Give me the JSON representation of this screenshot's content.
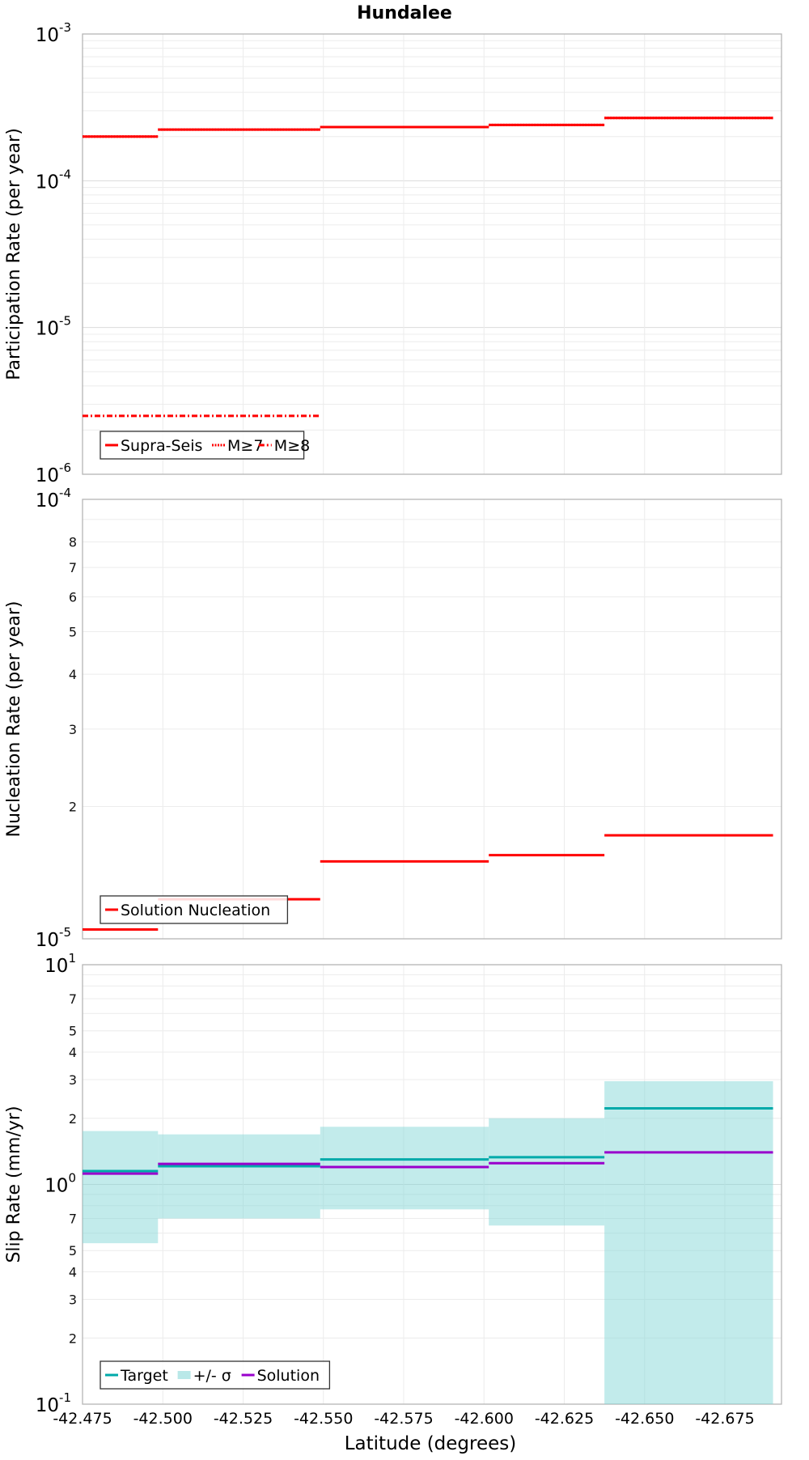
{
  "chart_data": [
    {
      "type": "line",
      "title": "Hundalee",
      "xlabel": "",
      "ylabel": "Participation Rate (per year)",
      "yscale": "log",
      "ylim": [
        1e-06,
        0.001
      ],
      "xlim": [
        -42.475,
        -42.69
      ],
      "xticks": [
        "-42.475",
        "-42.500",
        "-42.525",
        "-42.550",
        "-42.575",
        "-42.600",
        "-42.625",
        "-42.650",
        "-42.675"
      ],
      "yticks": [
        {
          "base": "10",
          "exp": "-6"
        },
        {
          "base": "10",
          "exp": "-5"
        },
        {
          "base": "10",
          "exp": "-4"
        },
        {
          "base": "10",
          "exp": "-3"
        }
      ],
      "grid": true,
      "legend_position": "bottom-left",
      "series": [
        {
          "name": "Supra-Seis",
          "color": "#ff0000",
          "style": "solid",
          "segments": [
            {
              "x0": -42.475,
              "x1": -42.4985,
              "y": 0.0002
            },
            {
              "x0": -42.4985,
              "x1": -42.549,
              "y": 0.000223
            },
            {
              "x0": -42.549,
              "x1": -42.6015,
              "y": 0.000232
            },
            {
              "x0": -42.6015,
              "x1": -42.6375,
              "y": 0.00024
            },
            {
              "x0": -42.6375,
              "x1": -42.69,
              "y": 0.000268
            }
          ]
        },
        {
          "name": "M≥7",
          "color": "#ff0000",
          "style": "dotted",
          "segments": [
            {
              "x0": -42.475,
              "x1": -42.4985,
              "y": 0.0002
            },
            {
              "x0": -42.4985,
              "x1": -42.549,
              "y": 0.000223
            },
            {
              "x0": -42.549,
              "x1": -42.6015,
              "y": 0.000232
            },
            {
              "x0": -42.6015,
              "x1": -42.6375,
              "y": 0.00024
            },
            {
              "x0": -42.6375,
              "x1": -42.69,
              "y": 0.000268
            }
          ]
        },
        {
          "name": "M≥8",
          "color": "#ff0000",
          "style": "dashdot",
          "segments": [
            {
              "x0": -42.475,
              "x1": -42.549,
              "y": 2.5e-06
            }
          ]
        }
      ]
    },
    {
      "type": "line",
      "title": "",
      "xlabel": "",
      "ylabel": "Nucleation Rate (per year)",
      "yscale": "log",
      "ylim": [
        1e-05,
        0.0001
      ],
      "xlim": [
        -42.475,
        -42.69
      ],
      "xticks": [
        "-42.475",
        "-42.500",
        "-42.525",
        "-42.550",
        "-42.575",
        "-42.600",
        "-42.625",
        "-42.650",
        "-42.675"
      ],
      "yticks": [
        {
          "base": "10",
          "exp": "-5"
        },
        {
          "label": "2"
        },
        {
          "label": "3"
        },
        {
          "label": "4"
        },
        {
          "label": "5"
        },
        {
          "label": "6"
        },
        {
          "label": "7"
        },
        {
          "label": "8"
        },
        {
          "base": "10",
          "exp": "-4"
        }
      ],
      "ytick_values": [
        1e-05,
        2e-05,
        3e-05,
        4e-05,
        5e-05,
        6e-05,
        7e-05,
        8e-05,
        0.0001
      ],
      "grid": true,
      "legend_position": "bottom-left",
      "series": [
        {
          "name": "Solution Nucleation",
          "color": "#ff0000",
          "style": "solid",
          "segments": [
            {
              "x0": -42.475,
              "x1": -42.4985,
              "y": 1.05e-05
            },
            {
              "x0": -42.4985,
              "x1": -42.549,
              "y": 1.23e-05
            },
            {
              "x0": -42.549,
              "x1": -42.6015,
              "y": 1.5e-05
            },
            {
              "x0": -42.6015,
              "x1": -42.6375,
              "y": 1.55e-05
            },
            {
              "x0": -42.6375,
              "x1": -42.69,
              "y": 1.72e-05
            }
          ]
        }
      ]
    },
    {
      "type": "line",
      "title": "",
      "xlabel": "Latitude (degrees)",
      "ylabel": "Slip Rate (mm/yr)",
      "yscale": "log",
      "ylim": [
        0.1,
        10
      ],
      "xlim": [
        -42.475,
        -42.69
      ],
      "xticks": [
        "-42.475",
        "-42.500",
        "-42.525",
        "-42.550",
        "-42.575",
        "-42.600",
        "-42.625",
        "-42.650",
        "-42.675"
      ],
      "yticks": [
        {
          "base": "10",
          "exp": "-1"
        },
        {
          "label": "2"
        },
        {
          "label": "3"
        },
        {
          "label": "4"
        },
        {
          "label": "5"
        },
        {
          "label": "7"
        },
        {
          "base": "10",
          "exp": "0"
        },
        {
          "label": "2"
        },
        {
          "label": "3"
        },
        {
          "label": "4"
        },
        {
          "label": "5"
        },
        {
          "label": "7"
        },
        {
          "base": "10",
          "exp": "1"
        }
      ],
      "ytick_values": [
        0.1,
        0.2,
        0.3,
        0.4,
        0.5,
        0.7,
        1,
        2,
        3,
        4,
        5,
        7,
        10
      ],
      "grid": true,
      "legend_position": "bottom-left",
      "band": {
        "name": "+/- σ",
        "color": "#7fd5d5",
        "segments": [
          {
            "x0": -42.475,
            "x1": -42.4985,
            "lo": 0.54,
            "hi": 1.75
          },
          {
            "x0": -42.4985,
            "x1": -42.549,
            "lo": 0.7,
            "hi": 1.69
          },
          {
            "x0": -42.549,
            "x1": -42.6015,
            "lo": 0.77,
            "hi": 1.83
          },
          {
            "x0": -42.6015,
            "x1": -42.6375,
            "lo": 0.65,
            "hi": 2.0
          },
          {
            "x0": -42.6375,
            "x1": -42.69,
            "lo": null,
            "hi": 2.95
          }
        ]
      },
      "series": [
        {
          "name": "Target",
          "color": "#00aaaa",
          "style": "solid",
          "segments": [
            {
              "x0": -42.475,
              "x1": -42.4985,
              "y": 1.15
            },
            {
              "x0": -42.4985,
              "x1": -42.549,
              "y": 1.21
            },
            {
              "x0": -42.549,
              "x1": -42.6015,
              "y": 1.3
            },
            {
              "x0": -42.6015,
              "x1": -42.6375,
              "y": 1.33
            },
            {
              "x0": -42.6375,
              "x1": -42.69,
              "y": 2.22
            }
          ]
        },
        {
          "name": "Solution",
          "color": "#9900cc",
          "style": "solid",
          "segments": [
            {
              "x0": -42.475,
              "x1": -42.4985,
              "y": 1.12
            },
            {
              "x0": -42.4985,
              "x1": -42.549,
              "y": 1.24
            },
            {
              "x0": -42.549,
              "x1": -42.6015,
              "y": 1.2
            },
            {
              "x0": -42.6015,
              "x1": -42.6375,
              "y": 1.25
            },
            {
              "x0": -42.6375,
              "x1": -42.69,
              "y": 1.4
            }
          ]
        }
      ]
    }
  ]
}
